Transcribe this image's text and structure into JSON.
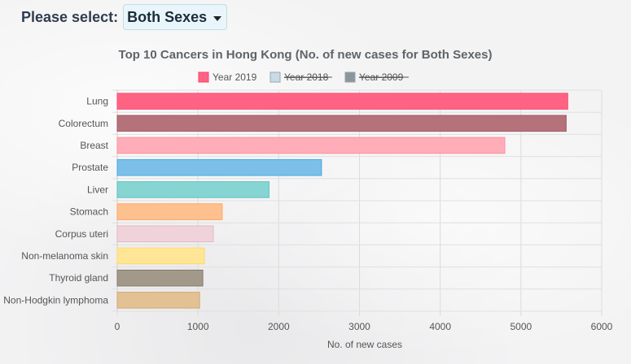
{
  "selector": {
    "label": "Please select:",
    "value": "Both Sexes"
  },
  "chart_data": {
    "type": "bar",
    "orientation": "horizontal",
    "title": "Top 10 Cancers in Hong Kong (No. of new cases for Both Sexes)",
    "xlabel": "No. of new cases",
    "ylabel": "",
    "xlim": [
      0,
      6000
    ],
    "x_ticks": [
      0,
      1000,
      2000,
      3000,
      4000,
      5000,
      6000
    ],
    "grid": true,
    "legend_position": "top",
    "legend": [
      {
        "name": "Year 2019",
        "color": "#ff6384",
        "hidden": false
      },
      {
        "name": "Year 2018",
        "color": "#c9dce6",
        "hidden": true
      },
      {
        "name": "Year 2009",
        "color": "#8a959c",
        "hidden": true
      }
    ],
    "categories": [
      "Lung",
      "Colorectum",
      "Breast",
      "Prostate",
      "Liver",
      "Stomach",
      "Corpus uteri",
      "Non-melanoma skin",
      "Thyroid gland",
      "Non-Hodgkin lymphoma"
    ],
    "series": [
      {
        "name": "Year 2019",
        "values": [
          5580,
          5560,
          4800,
          2530,
          1880,
          1300,
          1190,
          1080,
          1060,
          1020
        ]
      }
    ],
    "bar_colors": [
      "#ff6384",
      "#b5727a",
      "#ffadb8",
      "#7cc0ea",
      "#86d5d3",
      "#ffc08f",
      "#f0d2da",
      "#ffe696",
      "#a3998a",
      "#e2c194"
    ],
    "bar_border_colors": [
      "#ff4d70",
      "#a45a63",
      "#ff8fa0",
      "#4aa8e0",
      "#5cc4c0",
      "#ffa563",
      "#e3b8c4",
      "#ffd86a",
      "#857b6c",
      "#d2a870"
    ]
  }
}
